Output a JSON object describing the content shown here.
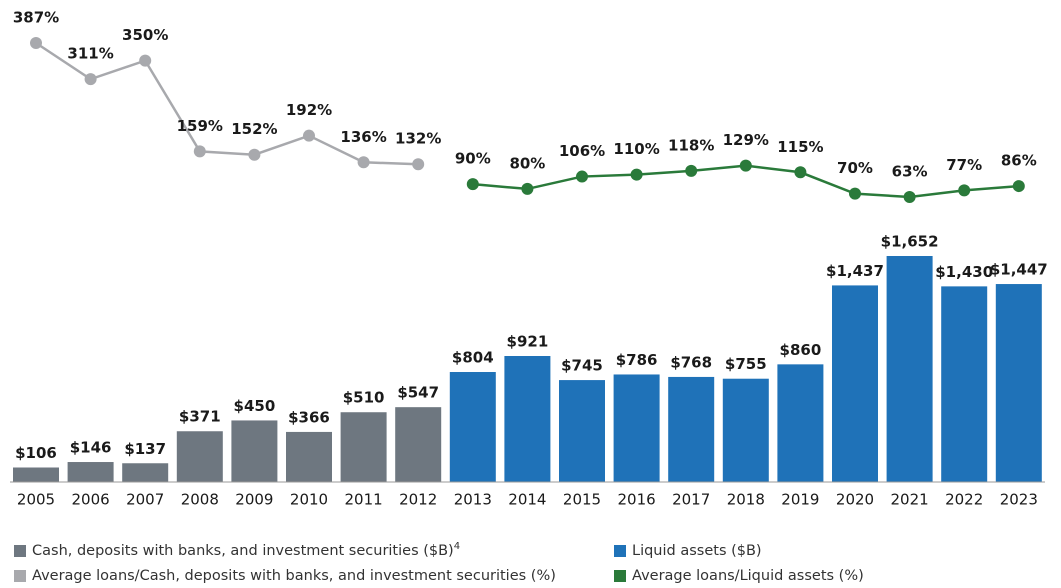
{
  "chart_data": {
    "type": "bar",
    "categories": [
      "2005",
      "2006",
      "2007",
      "2008",
      "2009",
      "2010",
      "2011",
      "2012",
      "2013",
      "2014",
      "2015",
      "2016",
      "2017",
      "2018",
      "2019",
      "2020",
      "2021",
      "2022",
      "2023"
    ],
    "series": [
      {
        "name": "Cash, deposits with banks, and investment securities ($B)",
        "footnote": "4",
        "type": "bar",
        "color": "#6e7780",
        "values": [
          106,
          146,
          137,
          371,
          450,
          366,
          510,
          547,
          null,
          null,
          null,
          null,
          null,
          null,
          null,
          null,
          null,
          null,
          null
        ],
        "value_labels": [
          "$106",
          "$146",
          "$137",
          "$371",
          "$450",
          "$366",
          "$510",
          "$547",
          null,
          null,
          null,
          null,
          null,
          null,
          null,
          null,
          null,
          null,
          null
        ]
      },
      {
        "name": "Liquid assets ($B)",
        "type": "bar",
        "color": "#1f72b8",
        "values": [
          null,
          null,
          null,
          null,
          null,
          null,
          null,
          null,
          804,
          921,
          745,
          786,
          768,
          755,
          860,
          1437,
          1652,
          1430,
          1447
        ],
        "value_labels": [
          null,
          null,
          null,
          null,
          null,
          null,
          null,
          null,
          "$804",
          "$921",
          "$745",
          "$786",
          "$768",
          "$755",
          "$860",
          "$1,437",
          "$1,652",
          "$1,430",
          "$1,447"
        ]
      },
      {
        "name": "Average loans/Cash, deposits with banks, and investment securities (%)",
        "type": "line",
        "color": "#a8a9ad",
        "values": [
          387,
          311,
          350,
          159,
          152,
          192,
          136,
          132,
          null,
          null,
          null,
          null,
          null,
          null,
          null,
          null,
          null,
          null,
          null
        ],
        "value_labels": [
          "387%",
          "311%",
          "350%",
          "159%",
          "152%",
          "192%",
          "136%",
          "132%",
          null,
          null,
          null,
          null,
          null,
          null,
          null,
          null,
          null,
          null,
          null
        ]
      },
      {
        "name": "Average loans/Liquid assets (%)",
        "type": "line",
        "color": "#2a7a3a",
        "values": [
          null,
          null,
          null,
          null,
          null,
          null,
          null,
          null,
          90,
          80,
          106,
          110,
          118,
          129,
          115,
          70,
          63,
          77,
          86
        ],
        "value_labels": [
          null,
          null,
          null,
          null,
          null,
          null,
          null,
          null,
          "90%",
          "80%",
          "106%",
          "110%",
          "118%",
          "129%",
          "115%",
          "70%",
          "63%",
          "77%",
          "86%"
        ]
      }
    ]
  }
}
